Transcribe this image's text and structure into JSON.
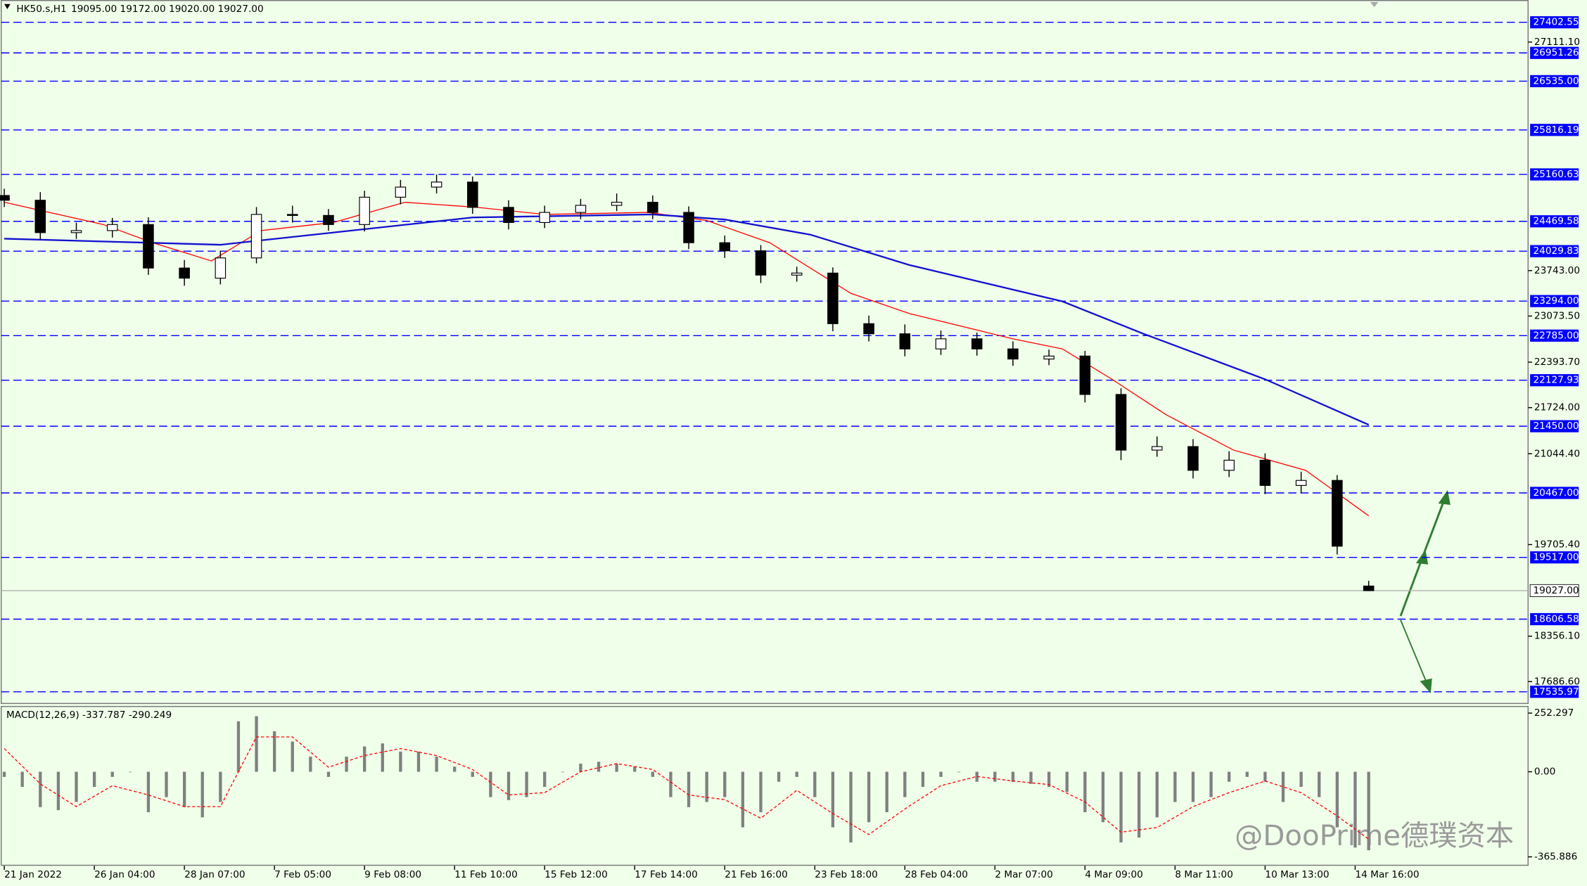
{
  "header": {
    "symbol": "HK50.s,H1",
    "ohlc": "19095.00 19172.00 19020.00 19027.00"
  },
  "watermark": "@DooPrime德璞资本",
  "chart_data": [
    {
      "type": "candlestick",
      "title": "HK50.s,H1",
      "x": [
        0,
        8,
        16,
        24,
        32,
        40,
        48,
        56,
        64,
        72,
        80,
        88,
        96,
        104,
        112,
        120,
        128,
        136,
        144,
        152,
        160,
        168,
        176,
        184,
        192,
        200,
        208,
        216,
        224,
        232,
        240,
        248,
        256,
        264,
        272,
        280,
        288,
        296,
        303
      ],
      "open": [
        24850,
        24780,
        24303,
        24333,
        24422,
        23781,
        23632,
        23930,
        24571,
        24556,
        24422,
        24825,
        24974,
        25048,
        24675,
        24452,
        24601,
        24705,
        24750,
        24601,
        24154,
        24035,
        23677,
        23707,
        22961,
        22812,
        22589,
        22738,
        22589,
        22440,
        22484,
        21918,
        21098,
        21150,
        20800,
        20949,
        20577,
        20651,
        19095
      ],
      "high": [
        24950,
        24900,
        24450,
        24520,
        24530,
        23900,
        24030,
        24680,
        24700,
        24650,
        24920,
        25080,
        25160,
        25130,
        24780,
        24700,
        24800,
        24880,
        24850,
        24690,
        24260,
        24120,
        23800,
        23790,
        23080,
        22950,
        22860,
        22830,
        22700,
        22580,
        22560,
        22010,
        21300,
        21260,
        21080,
        21050,
        20780,
        20730,
        19172
      ],
      "low": [
        24680,
        24200,
        24210,
        24230,
        23680,
        23520,
        23540,
        23850,
        24450,
        24330,
        24320,
        24720,
        24880,
        24580,
        24350,
        24370,
        24500,
        24620,
        24500,
        24060,
        23930,
        23560,
        23580,
        22850,
        22700,
        22480,
        22500,
        22490,
        22340,
        22350,
        21800,
        20950,
        21000,
        20680,
        20700,
        20450,
        20470,
        19560,
        19020
      ],
      "close": [
        24780,
        24303,
        24333,
        24422,
        23781,
        23632,
        23930,
        24571,
        24556,
        24422,
        24825,
        24974,
        25048,
        24675,
        24452,
        24601,
        24705,
        24750,
        24601,
        24154,
        24035,
        23677,
        23707,
        22961,
        22812,
        22589,
        22738,
        22589,
        22440,
        22484,
        21918,
        21098,
        21150,
        20800,
        20949,
        20577,
        20651,
        19682,
        19027
      ],
      "up_color": "#ffffff",
      "down_color": "#000000",
      "lines": [
        {
          "color": "#ff0000",
          "x": [
            0,
            22,
            33,
            46,
            57,
            73,
            89,
            105,
            120,
            143,
            156,
            170,
            188,
            201,
            224,
            235,
            246,
            258,
            273,
            289,
            303
          ],
          "values": [
            24750,
            24422,
            24154,
            23886,
            24333,
            24452,
            24750,
            24675,
            24571,
            24601,
            24482,
            24154,
            23409,
            23110,
            22738,
            22589,
            22142,
            21620,
            21098,
            20800,
            20129
          ]
        },
        {
          "color": "#1010d0",
          "x": [
            0,
            48,
            104,
            144,
            160,
            179,
            201,
            235,
            253,
            280,
            303
          ],
          "values": [
            24213,
            24124,
            24526,
            24571,
            24497,
            24273,
            23826,
            23289,
            22812,
            22142,
            21471
          ]
        }
      ],
      "levels": [
        {
          "value": 27402.55,
          "label": "27402.55"
        },
        {
          "value": 26951.26,
          "label": "26951.26"
        },
        {
          "value": 26535,
          "label": "26535.00"
        },
        {
          "value": 25816.19,
          "label": "25816.19"
        },
        {
          "value": 25160.63,
          "label": "25160.63"
        },
        {
          "value": 24469.58,
          "label": "24469.58"
        },
        {
          "value": 24029.83,
          "label": "24029.83"
        },
        {
          "value": 23294,
          "label": "23294.00"
        },
        {
          "value": 22785,
          "label": "22785.00"
        },
        {
          "value": 22127.93,
          "label": "22127.93"
        },
        {
          "value": 21450,
          "label": "21450.00"
        },
        {
          "value": 20467,
          "label": "20467.00"
        },
        {
          "value": 19517,
          "label": "19517.00"
        },
        {
          "value": 18606.58,
          "label": "18606.58"
        },
        {
          "value": 17535.97,
          "label": "17535.97"
        }
      ],
      "level_color": "#0000ff",
      "current_price": {
        "value": 19027,
        "label": "19027.00"
      },
      "xlim": [
        0,
        338.4
      ],
      "ylim": [
        17372,
        27731
      ],
      "yticks": [
        {
          "value": 27111.1,
          "label": "27111.10"
        },
        {
          "value": 23743,
          "label": "23743.00"
        },
        {
          "value": 23073.5,
          "label": "23073.50"
        },
        {
          "value": 22393.7,
          "label": "22393.70"
        },
        {
          "value": 21724,
          "label": "21724.00"
        },
        {
          "value": 21044.4,
          "label": "21044.40"
        },
        {
          "value": 19705.4,
          "label": "19705.40"
        },
        {
          "value": 18356.1,
          "label": "18356.10"
        },
        {
          "value": 17686.6,
          "label": "17686.60"
        }
      ],
      "xticks": [
        {
          "value": 0,
          "label": "21 Jan 2022"
        },
        {
          "value": 20,
          "label": "26 Jan 04:00"
        },
        {
          "value": 40,
          "label": "28 Jan 07:00"
        },
        {
          "value": 60,
          "label": "7 Feb 05:00"
        },
        {
          "value": 80,
          "label": "9 Feb 08:00"
        },
        {
          "value": 100,
          "label": "11 Feb 10:00"
        },
        {
          "value": 120,
          "label": "15 Feb 12:00"
        },
        {
          "value": 140,
          "label": "17 Feb 14:00"
        },
        {
          "value": 160,
          "label": "21 Feb 16:00"
        },
        {
          "value": 180,
          "label": "23 Feb 18:00"
        },
        {
          "value": 200,
          "label": "28 Feb 04:00"
        },
        {
          "value": 220,
          "label": "2 Mar 07:00"
        },
        {
          "value": 240,
          "label": "4 Mar 09:00"
        },
        {
          "value": 260,
          "label": "8 Mar 11:00"
        },
        {
          "value": 280,
          "label": "10 Mar 13:00"
        },
        {
          "value": 300,
          "label": "14 Mar 16:00"
        }
      ]
    },
    {
      "type": "macd",
      "title": "MACD(12,26,9) -337.787 -290.249",
      "x": [
        0,
        4,
        8,
        12,
        16,
        20,
        24,
        28,
        32,
        36,
        40,
        44,
        48,
        52,
        56,
        60,
        64,
        68,
        72,
        76,
        80,
        84,
        88,
        92,
        96,
        100,
        104,
        108,
        112,
        116,
        120,
        124,
        128,
        132,
        136,
        140,
        144,
        148,
        152,
        156,
        160,
        164,
        168,
        172,
        176,
        180,
        184,
        188,
        192,
        196,
        200,
        204,
        208,
        212,
        216,
        220,
        224,
        228,
        232,
        236,
        240,
        244,
        248,
        252,
        256,
        260,
        264,
        268,
        272,
        276,
        280,
        284,
        288,
        292,
        296,
        300,
        303
      ],
      "values": [
        -22,
        -65,
        -152,
        -165,
        -130,
        -65,
        -22,
        0,
        -174,
        -109,
        -152,
        -196,
        -130,
        217,
        239,
        174,
        130,
        65,
        -22,
        65,
        109,
        122,
        87,
        87,
        65,
        22,
        -22,
        -109,
        -122,
        -109,
        -65,
        0,
        35,
        43,
        35,
        22,
        -22,
        -109,
        -152,
        -130,
        -109,
        -239,
        -174,
        -43,
        -22,
        -109,
        -239,
        -304,
        -217,
        -174,
        -109,
        -65,
        -22,
        0,
        -43,
        -43,
        -43,
        -52,
        -65,
        -87,
        -174,
        -217,
        -304,
        -283,
        -196,
        -130,
        -130,
        -109,
        -43,
        -22,
        -43,
        -130,
        -65,
        -109,
        -239,
        -326,
        -337.787
      ],
      "color": "#808080",
      "signal": {
        "color": "#ff0000",
        "x": [
          0,
          8,
          16,
          24,
          32,
          40,
          48,
          56,
          64,
          72,
          80,
          88,
          96,
          104,
          112,
          120,
          128,
          136,
          144,
          152,
          160,
          168,
          176,
          184,
          192,
          200,
          208,
          216,
          224,
          232,
          240,
          248,
          256,
          264,
          272,
          280,
          288,
          296,
          303
        ],
        "values": [
          100,
          -52,
          -150,
          -60,
          -100,
          -150,
          -150,
          150,
          150,
          20,
          70,
          100,
          70,
          10,
          -100,
          -90,
          0,
          35,
          10,
          -100,
          -120,
          -200,
          -80,
          -180,
          -270,
          -160,
          -60,
          -20,
          -40,
          -55,
          -130,
          -260,
          -240,
          -150,
          -90,
          -40,
          -90,
          -190,
          -290.249
        ]
      },
      "xlim": [
        0,
        338.4
      ],
      "ylim": [
        -400,
        283
      ],
      "yticks": [
        {
          "value": 252.297,
          "label": "252.297"
        },
        {
          "value": 0,
          "label": "0.00"
        },
        {
          "value": -365.886,
          "label": "-365.886"
        }
      ]
    }
  ]
}
